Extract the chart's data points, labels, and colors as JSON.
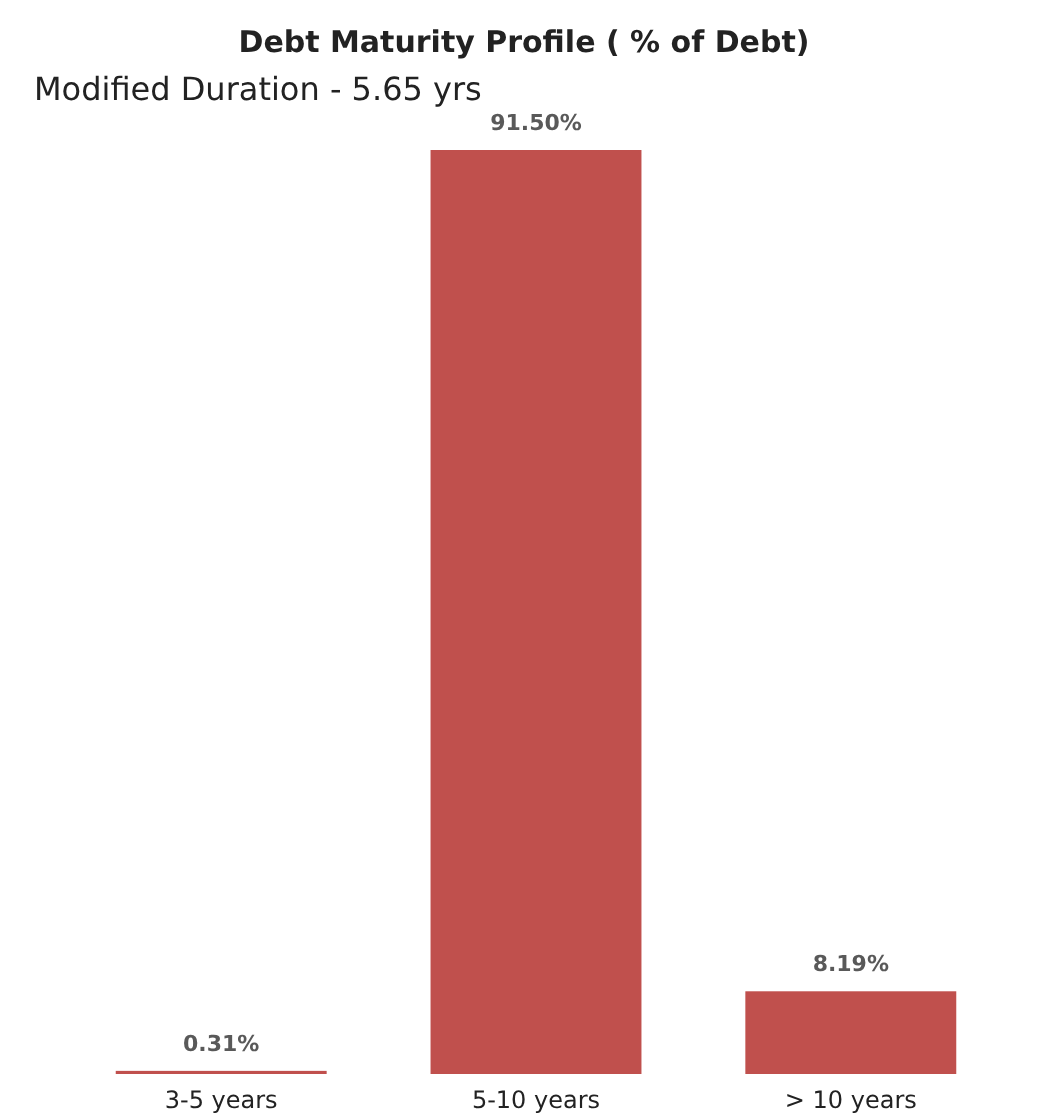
{
  "chart_data": {
    "type": "bar",
    "title": "Debt Maturity Profile ( % of Debt)",
    "categories": [
      "3-5 years",
      "5-10 years",
      "> 10 years"
    ],
    "values": [
      0.31,
      91.5,
      8.19
    ],
    "value_labels": [
      "0.31%",
      "91.50%",
      "8.19%"
    ],
    "color": "#c0504d",
    "annotations": [
      "Modified Duration - 5.65 yrs"
    ]
  }
}
